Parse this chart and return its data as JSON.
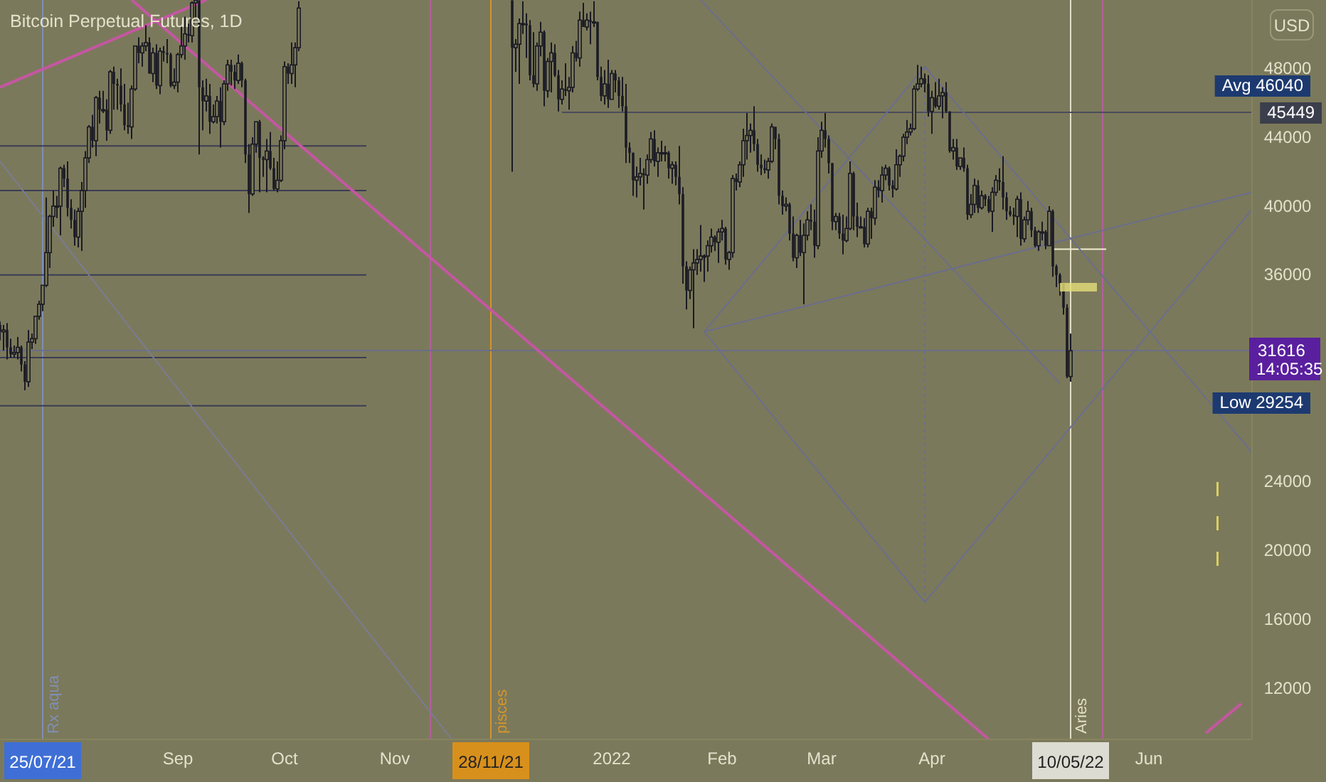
{
  "chart_data": {
    "type": "candlestick",
    "title": "Bitcoin Perpetual Futures, 1D",
    "color": "#1b1b24",
    "x": [
      "2021-07-13",
      "2021-07-14",
      "2021-07-15",
      "2021-07-16",
      "2021-07-17",
      "2021-07-18",
      "2021-07-19",
      "2021-07-20",
      "2021-07-21",
      "2021-07-22",
      "2021-07-23",
      "2021-07-24",
      "2021-07-25",
      "2021-07-26",
      "2021-07-27",
      "2021-07-28",
      "2021-07-29",
      "2021-07-30",
      "2021-07-31",
      "2021-08-01",
      "2021-08-02",
      "2021-08-03",
      "2021-08-04",
      "2021-08-05",
      "2021-08-06",
      "2021-08-07",
      "2021-08-08",
      "2021-08-09",
      "2021-08-10",
      "2021-08-11",
      "2021-08-12",
      "2021-08-13",
      "2021-08-14",
      "2021-08-15",
      "2021-08-16",
      "2021-08-17",
      "2021-08-18",
      "2021-08-19",
      "2021-08-20",
      "2021-08-21",
      "2021-08-22",
      "2021-08-23",
      "2021-08-24",
      "2021-08-25",
      "2021-08-26",
      "2021-08-27",
      "2021-08-28",
      "2021-08-29",
      "2021-08-30",
      "2021-08-31",
      "2021-09-01",
      "2021-09-02",
      "2021-09-03",
      "2021-09-04",
      "2021-09-05",
      "2021-09-06",
      "2021-09-07",
      "2021-09-08",
      "2021-09-09",
      "2021-09-10",
      "2021-09-11",
      "2021-09-12",
      "2021-09-13",
      "2021-09-14",
      "2021-09-15",
      "2021-09-16",
      "2021-09-17",
      "2021-09-18",
      "2021-09-19",
      "2021-09-20",
      "2021-09-21",
      "2021-09-22",
      "2021-09-23",
      "2021-09-24",
      "2021-09-25",
      "2021-09-26",
      "2021-09-27",
      "2021-09-28",
      "2021-09-29",
      "2021-09-30",
      "2021-10-01",
      "2021-10-02",
      "2021-10-03",
      "2021-10-04",
      "2021-10-05",
      "2021-12-04",
      "2021-12-05",
      "2021-12-06",
      "2021-12-07",
      "2021-12-08",
      "2021-12-09",
      "2021-12-10",
      "2021-12-11",
      "2021-12-12",
      "2021-12-13",
      "2021-12-14",
      "2021-12-15",
      "2021-12-16",
      "2021-12-17",
      "2021-12-18",
      "2021-12-19",
      "2021-12-20",
      "2021-12-21",
      "2021-12-22",
      "2021-12-23",
      "2021-12-24",
      "2021-12-25",
      "2021-12-26",
      "2021-12-27",
      "2021-12-28",
      "2021-12-29",
      "2021-12-30",
      "2021-12-31",
      "2022-01-01",
      "2022-01-02",
      "2022-01-03",
      "2022-01-04",
      "2022-01-05",
      "2022-01-06",
      "2022-01-07",
      "2022-01-08",
      "2022-01-09",
      "2022-01-10",
      "2022-01-11",
      "2022-01-12",
      "2022-01-13",
      "2022-01-14",
      "2022-01-15",
      "2022-01-16",
      "2022-01-17",
      "2022-01-18",
      "2022-01-19",
      "2022-01-20",
      "2022-01-21",
      "2022-01-22",
      "2022-01-23",
      "2022-01-24",
      "2022-01-25",
      "2022-01-26",
      "2022-01-27",
      "2022-01-28",
      "2022-01-29",
      "2022-01-30",
      "2022-01-31",
      "2022-02-01",
      "2022-02-02",
      "2022-02-03",
      "2022-02-04",
      "2022-02-05",
      "2022-02-06",
      "2022-02-07",
      "2022-02-08",
      "2022-02-09",
      "2022-02-10",
      "2022-02-11",
      "2022-02-12",
      "2022-02-13",
      "2022-02-14",
      "2022-02-15",
      "2022-02-16",
      "2022-02-17",
      "2022-02-18",
      "2022-02-19",
      "2022-02-20",
      "2022-02-21",
      "2022-02-22",
      "2022-02-23",
      "2022-02-24",
      "2022-02-25",
      "2022-02-26",
      "2022-02-27",
      "2022-02-28",
      "2022-03-01",
      "2022-03-02",
      "2022-03-03",
      "2022-03-04",
      "2022-03-05",
      "2022-03-06",
      "2022-03-07",
      "2022-03-08",
      "2022-03-09",
      "2022-03-10",
      "2022-03-11",
      "2022-03-12",
      "2022-03-13",
      "2022-03-14",
      "2022-03-15",
      "2022-03-16",
      "2022-03-17",
      "2022-03-18",
      "2022-03-19",
      "2022-03-20",
      "2022-03-21",
      "2022-03-22",
      "2022-03-23",
      "2022-03-24",
      "2022-03-25",
      "2022-03-26",
      "2022-03-27",
      "2022-03-28",
      "2022-03-29",
      "2022-03-30",
      "2022-03-31",
      "2022-04-01",
      "2022-04-02",
      "2022-04-03",
      "2022-04-04",
      "2022-04-05",
      "2022-04-06",
      "2022-04-07",
      "2022-04-08",
      "2022-04-09",
      "2022-04-10",
      "2022-04-11",
      "2022-04-12",
      "2022-04-13",
      "2022-04-14",
      "2022-04-15",
      "2022-04-16",
      "2022-04-17",
      "2022-04-18",
      "2022-04-19",
      "2022-04-20",
      "2022-04-21",
      "2022-04-22",
      "2022-04-23",
      "2022-04-24",
      "2022-04-25",
      "2022-04-26",
      "2022-04-27",
      "2022-04-28",
      "2022-04-29",
      "2022-04-30",
      "2022-05-01",
      "2022-05-02",
      "2022-05-03",
      "2022-05-04",
      "2022-05-05",
      "2022-05-06",
      "2022-05-07",
      "2022-05-08",
      "2022-05-09",
      "2022-05-10"
    ],
    "ohlc": [
      [
        33100,
        33300,
        32200,
        32700
      ],
      [
        32700,
        33100,
        31600,
        32800
      ],
      [
        32800,
        33200,
        31100,
        31800
      ],
      [
        31800,
        32300,
        31200,
        31400
      ],
      [
        31400,
        31900,
        31200,
        31500
      ],
      [
        31500,
        32400,
        31100,
        31800
      ],
      [
        31800,
        31900,
        30400,
        30800
      ],
      [
        30800,
        31000,
        29300,
        29800
      ],
      [
        29800,
        32800,
        29500,
        32100
      ],
      [
        32100,
        32600,
        31700,
        32300
      ],
      [
        32300,
        33600,
        32000,
        33600
      ],
      [
        33600,
        34500,
        33400,
        34300
      ],
      [
        34300,
        35400,
        33900,
        35400
      ],
      [
        35400,
        40500,
        35300,
        37300
      ],
      [
        37300,
        39500,
        36400,
        39400
      ],
      [
        39400,
        40900,
        38800,
        40000
      ],
      [
        40000,
        40600,
        39300,
        40000
      ],
      [
        40000,
        42300,
        38300,
        42200
      ],
      [
        42200,
        42400,
        41100,
        41600
      ],
      [
        41600,
        42600,
        39400,
        39900
      ],
      [
        39900,
        40400,
        38700,
        39200
      ],
      [
        39200,
        39800,
        37700,
        38200
      ],
      [
        38200,
        39900,
        37600,
        39700
      ],
      [
        39700,
        41400,
        37400,
        40900
      ],
      [
        40900,
        43200,
        39900,
        42800
      ],
      [
        42800,
        44700,
        42500,
        44600
      ],
      [
        44600,
        45300,
        43400,
        43800
      ],
      [
        43800,
        46400,
        42900,
        46300
      ],
      [
        46300,
        46700,
        44800,
        45600
      ],
      [
        45600,
        46700,
        45400,
        45600
      ],
      [
        45600,
        46200,
        43800,
        44400
      ],
      [
        44400,
        47900,
        44200,
        47800
      ],
      [
        47800,
        48100,
        45600,
        47100
      ],
      [
        47100,
        47400,
        45600,
        47000
      ],
      [
        47000,
        48000,
        45500,
        45900
      ],
      [
        45900,
        47100,
        44400,
        44700
      ],
      [
        44700,
        46000,
        44200,
        44600
      ],
      [
        44600,
        47000,
        43900,
        46800
      ],
      [
        46800,
        49300,
        46700,
        49300
      ],
      [
        49300,
        49800,
        48300,
        48900
      ],
      [
        48900,
        49500,
        48100,
        49300
      ],
      [
        49300,
        50500,
        49000,
        49500
      ],
      [
        49500,
        49800,
        47700,
        47700
      ],
      [
        47700,
        49200,
        47200,
        48900
      ],
      [
        48900,
        49400,
        46800,
        47000
      ],
      [
        47000,
        49200,
        46500,
        49000
      ],
      [
        49000,
        49300,
        48400,
        48900
      ],
      [
        48900,
        49700,
        48300,
        48800
      ],
      [
        48800,
        48900,
        46900,
        47000
      ],
      [
        47000,
        48000,
        46800,
        47200
      ],
      [
        47200,
        48900,
        46600,
        48800
      ],
      [
        48800,
        50400,
        48600,
        49300
      ],
      [
        49300,
        51000,
        48500,
        50000
      ],
      [
        50000,
        50600,
        49500,
        49900
      ],
      [
        49900,
        51900,
        49500,
        51800
      ],
      [
        51800,
        51950,
        50900,
        51950
      ],
      [
        51950,
        51950,
        43000,
        46900
      ],
      [
        46900,
        47300,
        44400,
        46100
      ],
      [
        46100,
        47400,
        45500,
        46400
      ],
      [
        46400,
        47100,
        44200,
        44900
      ],
      [
        44900,
        45900,
        44800,
        45200
      ],
      [
        45200,
        46400,
        44800,
        46100
      ],
      [
        46100,
        46900,
        43400,
        44900
      ],
      [
        44900,
        47300,
        44700,
        47100
      ],
      [
        47100,
        48500,
        46700,
        48200
      ],
      [
        48200,
        48500,
        47000,
        47800
      ],
      [
        47800,
        48200,
        46800,
        47300
      ],
      [
        47300,
        48800,
        47100,
        48300
      ],
      [
        48300,
        48400,
        46900,
        47300
      ],
      [
        47300,
        47400,
        42500,
        43000
      ],
      [
        43000,
        43600,
        39600,
        40700
      ],
      [
        40700,
        44000,
        40600,
        43600
      ],
      [
        43600,
        44900,
        43100,
        44900
      ],
      [
        44900,
        45000,
        40800,
        42800
      ],
      [
        42800,
        42900,
        41700,
        42700
      ],
      [
        42700,
        43900,
        40800,
        43200
      ],
      [
        43200,
        44300,
        42100,
        42200
      ],
      [
        42200,
        42800,
        40900,
        41000
      ],
      [
        41000,
        42600,
        40800,
        41500
      ],
      [
        41500,
        44100,
        41400,
        43800
      ],
      [
        43800,
        48400,
        43300,
        48100
      ],
      [
        48100,
        48300,
        47100,
        47700
      ],
      [
        47700,
        49500,
        47100,
        48200
      ],
      [
        48200,
        49500,
        46900,
        49200
      ],
      [
        49200,
        51900,
        49000,
        51500
      ],
      [
        51950,
        51950,
        42000,
        49200
      ],
      [
        49200,
        49700,
        47800,
        49400
      ],
      [
        49400,
        50900,
        47100,
        50600
      ],
      [
        50600,
        51900,
        50000,
        50600
      ],
      [
        50600,
        51200,
        48600,
        50500
      ],
      [
        50500,
        50800,
        47300,
        47600
      ],
      [
        47600,
        50100,
        46900,
        47100
      ],
      [
        47100,
        49500,
        46700,
        49300
      ],
      [
        49300,
        50700,
        48700,
        50100
      ],
      [
        50100,
        50200,
        45800,
        46700
      ],
      [
        46700,
        48600,
        46300,
        48400
      ],
      [
        48400,
        49500,
        46600,
        48900
      ],
      [
        48900,
        49400,
        47500,
        47600
      ],
      [
        47600,
        47900,
        45500,
        46200
      ],
      [
        46200,
        47300,
        45900,
        46800
      ],
      [
        46800,
        48300,
        46400,
        46700
      ],
      [
        46700,
        47500,
        45600,
        46900
      ],
      [
        46900,
        49300,
        46600,
        48900
      ],
      [
        48900,
        49600,
        48400,
        48600
      ],
      [
        48600,
        51300,
        48100,
        50800
      ],
      [
        50800,
        51800,
        50400,
        50400
      ],
      [
        50400,
        51200,
        50200,
        50800
      ],
      [
        50800,
        51300,
        49400,
        50700
      ],
      [
        50700,
        51900,
        50400,
        50700
      ],
      [
        50700,
        50700,
        47300,
        47500
      ],
      [
        47500,
        48100,
        46100,
        46400
      ],
      [
        46400,
        47900,
        45900,
        47100
      ],
      [
        47100,
        48500,
        45700,
        46200
      ],
      [
        46200,
        47900,
        46200,
        47700
      ],
      [
        47700,
        47900,
        46600,
        47300
      ],
      [
        47300,
        47500,
        45700,
        46400
      ],
      [
        46400,
        47500,
        45500,
        45800
      ],
      [
        45800,
        47100,
        42500,
        43400
      ],
      [
        43400,
        43700,
        42500,
        43100
      ],
      [
        43100,
        43100,
        40600,
        41500
      ],
      [
        41500,
        42300,
        40500,
        41700
      ],
      [
        41700,
        42800,
        41200,
        41900
      ],
      [
        41900,
        42200,
        39800,
        41800
      ],
      [
        41800,
        43000,
        41300,
        42700
      ],
      [
        42700,
        44300,
        42500,
        43900
      ],
      [
        43900,
        44400,
        42300,
        42600
      ],
      [
        42600,
        43400,
        41700,
        43100
      ],
      [
        43100,
        43800,
        42600,
        43100
      ],
      [
        43100,
        43500,
        42600,
        43100
      ],
      [
        43100,
        43200,
        41600,
        42200
      ],
      [
        42200,
        42600,
        41300,
        42400
      ],
      [
        42400,
        42600,
        41200,
        41700
      ],
      [
        41700,
        43500,
        40100,
        40700
      ],
      [
        40700,
        41100,
        35500,
        36500
      ],
      [
        36500,
        36800,
        34000,
        35100
      ],
      [
        35100,
        36500,
        34600,
        36300
      ],
      [
        36300,
        37500,
        32900,
        36700
      ],
      [
        36700,
        37500,
        36000,
        36900
      ],
      [
        36900,
        38900,
        36200,
        37100
      ],
      [
        37100,
        37200,
        35600,
        37100
      ],
      [
        37100,
        38000,
        36200,
        37700
      ],
      [
        37700,
        38700,
        37300,
        38200
      ],
      [
        38200,
        38300,
        37400,
        37900
      ],
      [
        37900,
        38700,
        36700,
        38500
      ],
      [
        38500,
        39200,
        38000,
        38700
      ],
      [
        38700,
        38800,
        36600,
        36900
      ],
      [
        36900,
        37400,
        36300,
        37300
      ],
      [
        37300,
        41800,
        37000,
        41600
      ],
      [
        41600,
        41900,
        40900,
        41400
      ],
      [
        41400,
        42600,
        41100,
        42400
      ],
      [
        42400,
        44500,
        41700,
        43800
      ],
      [
        43800,
        45400,
        42700,
        44100
      ],
      [
        44100,
        44800,
        43100,
        44400
      ],
      [
        44400,
        45800,
        43200,
        43600
      ],
      [
        43600,
        43900,
        42000,
        42400
      ],
      [
        42400,
        43000,
        41800,
        42200
      ],
      [
        42200,
        42700,
        41900,
        42100
      ],
      [
        42100,
        42800,
        41600,
        42600
      ],
      [
        42600,
        44800,
        42500,
        44600
      ],
      [
        44600,
        44600,
        43300,
        43900
      ],
      [
        43900,
        44200,
        40100,
        40600
      ],
      [
        40600,
        40900,
        39500,
        40000
      ],
      [
        40000,
        40500,
        39700,
        40100
      ],
      [
        40100,
        40200,
        38000,
        38400
      ],
      [
        38400,
        39400,
        36800,
        37000
      ],
      [
        37000,
        38400,
        36400,
        38300
      ],
      [
        38300,
        39200,
        37100,
        37300
      ],
      [
        37300,
        39000,
        34300,
        38300
      ],
      [
        38300,
        39700,
        38000,
        39200
      ],
      [
        39200,
        40100,
        38600,
        39100
      ],
      [
        39100,
        39800,
        37000,
        37700
      ],
      [
        37700,
        44000,
        37500,
        43200
      ],
      [
        43200,
        44900,
        42800,
        44400
      ],
      [
        44400,
        45400,
        43400,
        43900
      ],
      [
        43900,
        44100,
        41900,
        42500
      ],
      [
        42500,
        42500,
        38600,
        39100
      ],
      [
        39100,
        39600,
        38600,
        39400
      ],
      [
        39400,
        39600,
        38100,
        38400
      ],
      [
        38400,
        39500,
        37200,
        38000
      ],
      [
        38000,
        39400,
        37900,
        38700
      ],
      [
        38700,
        42600,
        38600,
        41900
      ],
      [
        41900,
        42000,
        38600,
        39400
      ],
      [
        39400,
        40200,
        38200,
        38800
      ],
      [
        38800,
        39400,
        38700,
        38800
      ],
      [
        38800,
        39300,
        37600,
        37800
      ],
      [
        37800,
        39900,
        37600,
        39700
      ],
      [
        39700,
        39900,
        38100,
        39300
      ],
      [
        39300,
        41500,
        38900,
        41100
      ],
      [
        41100,
        41500,
        40500,
        40900
      ],
      [
        40900,
        42300,
        40200,
        41800
      ],
      [
        41800,
        42400,
        41500,
        42200
      ],
      [
        42200,
        42300,
        40900,
        41200
      ],
      [
        41200,
        41500,
        40500,
        41000
      ],
      [
        41000,
        43300,
        40900,
        42400
      ],
      [
        42400,
        43000,
        41700,
        42900
      ],
      [
        42900,
        44200,
        42600,
        44000
      ],
      [
        44000,
        45000,
        43600,
        44300
      ],
      [
        44300,
        44800,
        44100,
        44500
      ],
      [
        44500,
        47000,
        44400,
        46800
      ],
      [
        46800,
        48200,
        46700,
        47100
      ],
      [
        47100,
        48100,
        46900,
        47400
      ],
      [
        47400,
        47700,
        46600,
        47100
      ],
      [
        47100,
        47600,
        45200,
        45500
      ],
      [
        45500,
        46700,
        44200,
        46300
      ],
      [
        46300,
        47200,
        45700,
        45800
      ],
      [
        45800,
        47400,
        45600,
        46400
      ],
      [
        46400,
        46900,
        45100,
        46600
      ],
      [
        46600,
        47200,
        45400,
        45500
      ],
      [
        45500,
        45500,
        43100,
        43200
      ],
      [
        43200,
        43900,
        42700,
        43400
      ],
      [
        43400,
        43900,
        42100,
        42300
      ],
      [
        42300,
        42800,
        42100,
        42800
      ],
      [
        42800,
        43400,
        42000,
        42200
      ],
      [
        42200,
        42400,
        39200,
        39500
      ],
      [
        39500,
        40700,
        39300,
        40100
      ],
      [
        40100,
        41600,
        39600,
        41200
      ],
      [
        41200,
        41500,
        39600,
        39900
      ],
      [
        39900,
        40900,
        39800,
        40600
      ],
      [
        40600,
        40700,
        40000,
        40400
      ],
      [
        40400,
        40600,
        39600,
        39700
      ],
      [
        39700,
        41100,
        38500,
        40800
      ],
      [
        40800,
        41800,
        40600,
        41500
      ],
      [
        41500,
        42200,
        40900,
        41400
      ],
      [
        41400,
        42900,
        39800,
        40500
      ],
      [
        40500,
        40800,
        39200,
        39700
      ],
      [
        39700,
        40000,
        39400,
        39500
      ],
      [
        39500,
        39900,
        38900,
        39400
      ],
      [
        39400,
        40600,
        38200,
        40400
      ],
      [
        40400,
        40800,
        37700,
        38100
      ],
      [
        38100,
        39400,
        37900,
        39200
      ],
      [
        39200,
        40300,
        38900,
        39700
      ],
      [
        39700,
        39900,
        38200,
        38600
      ],
      [
        38600,
        38800,
        37600,
        37700
      ],
      [
        37700,
        38600,
        37400,
        38500
      ],
      [
        38500,
        39100,
        38000,
        38500
      ],
      [
        38500,
        38600,
        37500,
        37700
      ],
      [
        37700,
        40000,
        37700,
        39700
      ],
      [
        39700,
        39800,
        35900,
        36500
      ],
      [
        36500,
        36600,
        35300,
        36000
      ],
      [
        36000,
        36100,
        34800,
        35500
      ],
      [
        35500,
        35500,
        33700,
        34100
      ],
      [
        34100,
        34300,
        30000,
        30100
      ],
      [
        30100,
        32600,
        29800,
        31600
      ]
    ],
    "xlim": [
      "2021-07-13",
      "2022-06-30"
    ],
    "ylim": [
      9030,
      51970
    ],
    "xticks": [
      {
        "value": "2021-09-01",
        "label": "Sep"
      },
      {
        "value": "2021-10-01",
        "label": "Oct"
      },
      {
        "value": "2021-11-01",
        "label": "Nov"
      },
      {
        "value": "2022-01-01",
        "label": "2022"
      },
      {
        "value": "2022-02-01",
        "label": "Feb"
      },
      {
        "value": "2022-03-01",
        "label": "Mar"
      },
      {
        "value": "2022-04-01",
        "label": "Apr"
      },
      {
        "value": "2022-06-01",
        "label": "Jun"
      }
    ],
    "yticks": [
      12000,
      16000,
      20000,
      24000,
      36000,
      40000,
      44000,
      48000
    ],
    "series": [
      {
        "type": "line",
        "color": "#3a3d55",
        "x": [
          "2021-07-13",
          "2021-10-24"
        ],
        "values": [
          43500,
          43500
        ]
      },
      {
        "type": "line",
        "color": "#3a3d55",
        "x": [
          "2021-07-13",
          "2021-10-24"
        ],
        "values": [
          40900,
          40900
        ]
      },
      {
        "type": "line",
        "color": "#3a3d55",
        "x": [
          "2021-07-13",
          "2021-10-24"
        ],
        "values": [
          36000,
          36000
        ]
      },
      {
        "type": "line",
        "color": "#3a3d55",
        "x": [
          "2021-07-13",
          "2021-10-24"
        ],
        "values": [
          31200,
          31200
        ]
      },
      {
        "type": "line",
        "color": "#3a3d55",
        "x": [
          "2021-07-13",
          "2021-10-24"
        ],
        "values": [
          28400,
          28400
        ]
      },
      {
        "type": "line",
        "color": "#4a4c5c",
        "x": [
          "2021-12-18",
          "2022-06-30"
        ],
        "values": [
          45449,
          45449
        ]
      },
      {
        "type": "line",
        "color": "#f2eed2",
        "x": [
          "2022-05-05",
          "2022-05-20"
        ],
        "values": [
          37500,
          37500
        ]
      },
      {
        "type": "line",
        "color": "#c457a2",
        "x": [
          "2021-07-13",
          "2021-09-09"
        ],
        "values": [
          46900,
          51970
        ]
      },
      {
        "type": "line",
        "color": "#c457a2",
        "x": [
          "2021-08-19",
          "2022-04-17"
        ],
        "values": [
          51970,
          9030
        ]
      },
      {
        "type": "line",
        "color": "#c457a2",
        "x": [
          "2022-06-17",
          "2022-06-27"
        ],
        "values": [
          9400,
          11100
        ]
      },
      {
        "type": "line",
        "color": "#7a7c92",
        "x": [
          "2021-07-13",
          "2021-11-17"
        ],
        "values": [
          42600,
          9030
        ]
      },
      {
        "type": "line",
        "color": "#6b6e8c",
        "x": [
          "2022-01-27",
          "2022-03-30",
          "2022-06-30"
        ],
        "values": [
          32700,
          48100,
          25700
        ]
      },
      {
        "type": "line",
        "color": "#6b6e8c",
        "x": [
          "2022-01-27",
          "2022-03-30",
          "2022-06-30"
        ],
        "values": [
          32700,
          17000,
          39800
        ]
      },
      {
        "type": "line",
        "color": "#6b6e8c",
        "x": [
          "2022-01-27",
          "2022-06-30"
        ],
        "values": [
          32700,
          40800
        ]
      },
      {
        "type": "line",
        "color": "#6b6e8c",
        "x": [
          "2022-01-26",
          "2022-05-07"
        ],
        "values": [
          51970,
          29700
        ]
      },
      {
        "type": "line",
        "color": "#6b6e8c",
        "line_style": "dotted",
        "x": [
          "2022-03-30",
          "2022-03-30"
        ],
        "values": [
          48100,
          17000
        ]
      }
    ],
    "ref_lines": [
      {
        "axis": "x",
        "value": "2021-07-25",
        "label": "Rx aqua",
        "color": "#7f8fb4"
      },
      {
        "axis": "x",
        "value": "2021-11-11",
        "color": "#b0609c"
      },
      {
        "axis": "x",
        "value": "2021-11-28",
        "label": "pisces",
        "color": "#d4952c"
      },
      {
        "axis": "x",
        "value": "2022-05-10",
        "label": "Aries",
        "color": "#e2dec6"
      },
      {
        "axis": "x",
        "value": "2022-05-19",
        "color": "#b0609c"
      },
      {
        "axis": "y",
        "value": 31616,
        "label": "31616",
        "color": "#6a6e88"
      }
    ],
    "annotations": [
      "USD",
      "14:05:35",
      "25/07/21",
      "28/11/21",
      "10/05/22",
      "Avg 46040",
      "Low 29254",
      {
        "text": "45449",
        "x": "2022-06-30",
        "y": 45449
      }
    ]
  }
}
